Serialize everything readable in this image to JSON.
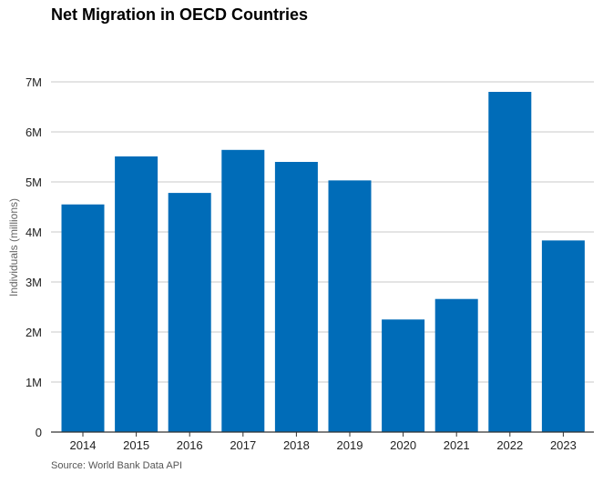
{
  "chart_data": {
    "type": "bar",
    "title": "Net Migration in OECD Countries",
    "ylabel": "Individuals (millions)",
    "xlabel": "",
    "source": "Source: World Bank Data API",
    "categories": [
      "2014",
      "2015",
      "2016",
      "2017",
      "2018",
      "2019",
      "2020",
      "2021",
      "2022",
      "2023"
    ],
    "values": [
      4.55,
      5.51,
      4.78,
      5.64,
      5.4,
      5.03,
      2.25,
      2.66,
      6.8,
      3.83
    ],
    "ylim": [
      0,
      7
    ],
    "yticks": [
      0,
      1,
      2,
      3,
      4,
      5,
      6,
      7
    ],
    "ytick_labels": [
      "0",
      "1M",
      "2M",
      "3M",
      "4M",
      "5M",
      "6M",
      "7M"
    ],
    "grid": true,
    "bar_color": "#006cb8"
  }
}
